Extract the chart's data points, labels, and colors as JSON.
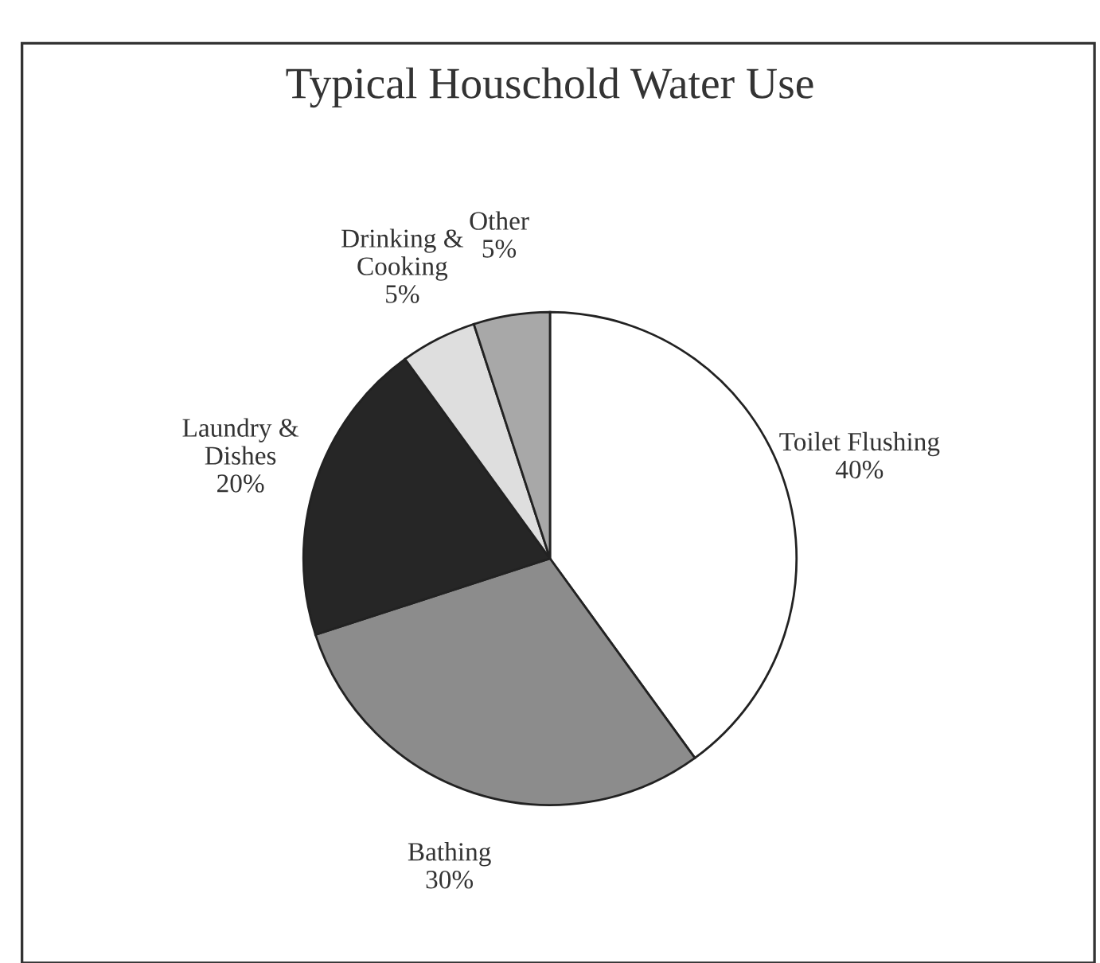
{
  "chart_data": {
    "type": "pie",
    "title": "Typical Houschold Water Use",
    "categories": [
      "Toilet Flushing",
      "Bathing",
      "Laundry &\nDishes",
      "Drinking &\nCooking",
      "Other"
    ],
    "values": [
      40,
      30,
      20,
      5,
      5
    ],
    "value_labels": [
      "40%",
      "30%",
      "20%",
      "5%",
      "5%"
    ],
    "colors": [
      "#ffffff",
      "#8c8c8c",
      "#262626",
      "#dedede",
      "#a8a8a8"
    ],
    "legend": false
  }
}
